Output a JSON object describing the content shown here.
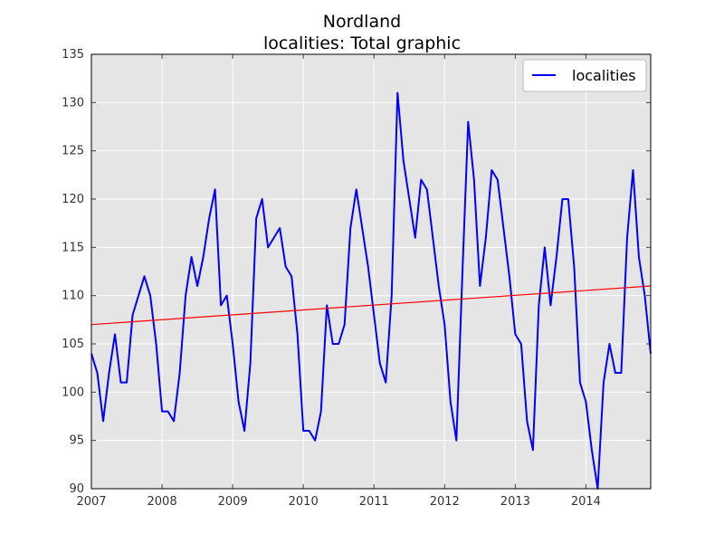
{
  "chart_data": {
    "type": "line",
    "title": "Nordland",
    "subtitle": "localities: Total graphic",
    "xlabel": "",
    "ylabel": "",
    "xlim": [
      2007.0,
      2014.917
    ],
    "ylim": [
      90,
      135
    ],
    "x_ticks": [
      "2007",
      "2008",
      "2009",
      "2010",
      "2011",
      "2012",
      "2013",
      "2014"
    ],
    "y_ticks": [
      "90",
      "95",
      "100",
      "105",
      "110",
      "115",
      "120",
      "125",
      "130",
      "135"
    ],
    "grid": true,
    "legend": {
      "position": "top-right",
      "entries": [
        "localities"
      ]
    },
    "series": [
      {
        "name": "localities",
        "color": "#0000ff",
        "start": "2007-01",
        "frequency": "monthly",
        "values": [
          104,
          102,
          97,
          102,
          106,
          101,
          101,
          108,
          110,
          112,
          110,
          105,
          98,
          98,
          97,
          102,
          110,
          114,
          111,
          114,
          118,
          121,
          109,
          110,
          105,
          99,
          96,
          103,
          118,
          120,
          115,
          116,
          117,
          113,
          112,
          106,
          96,
          96,
          95,
          98,
          109,
          105,
          105,
          107,
          117,
          121,
          117,
          113,
          108,
          103,
          101,
          110,
          131,
          124,
          120,
          116,
          122,
          121,
          116,
          111,
          107,
          99,
          95,
          112,
          128,
          122,
          111,
          116,
          123,
          122,
          117,
          112,
          106,
          105,
          97,
          94,
          109,
          115,
          109,
          114,
          120,
          120,
          113,
          101,
          99,
          94,
          90,
          101,
          105,
          102,
          102,
          116,
          123,
          114,
          110,
          104
        ]
      }
    ],
    "trend_line": {
      "color": "#ff0000",
      "start_value": 107.0,
      "end_value": 111.0
    }
  }
}
